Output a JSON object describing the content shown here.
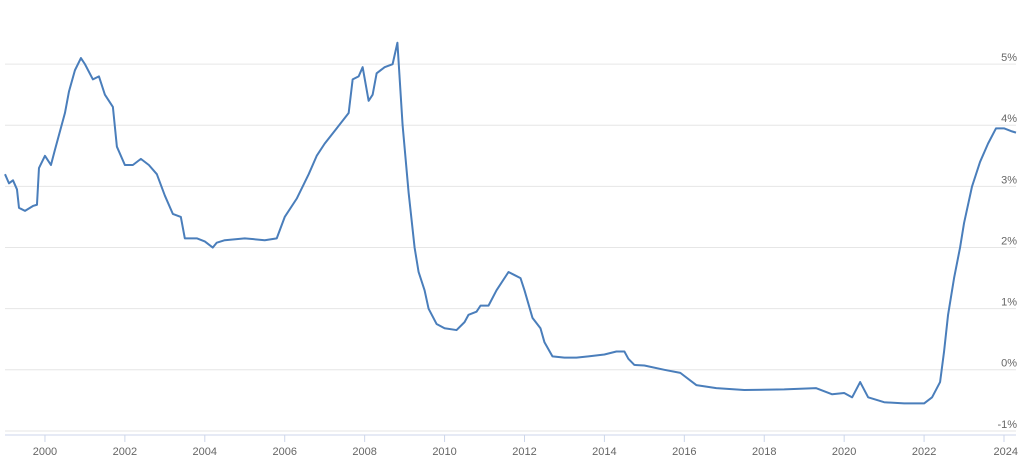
{
  "chart_data": {
    "type": "line",
    "x": [
      1999.0,
      1999.1,
      1999.2,
      1999.3,
      1999.35,
      1999.5,
      1999.7,
      1999.8,
      1999.85,
      2000.0,
      2000.15,
      2000.25,
      2000.5,
      2000.6,
      2000.75,
      2000.9,
      2001.0,
      2001.2,
      2001.35,
      2001.5,
      2001.7,
      2001.8,
      2002.0,
      2002.2,
      2002.4,
      2002.6,
      2002.8,
      2003.0,
      2003.2,
      2003.4,
      2003.5,
      2003.8,
      2004.0,
      2004.2,
      2004.3,
      2004.5,
      2005.0,
      2005.5,
      2005.8,
      2006.0,
      2006.3,
      2006.6,
      2006.8,
      2007.0,
      2007.3,
      2007.6,
      2007.7,
      2007.85,
      2007.95,
      2008.1,
      2008.2,
      2008.3,
      2008.5,
      2008.7,
      2008.82,
      2008.95,
      2009.1,
      2009.25,
      2009.35,
      2009.5,
      2009.6,
      2009.8,
      2010.0,
      2010.3,
      2010.5,
      2010.6,
      2010.8,
      2010.9,
      2011.1,
      2011.3,
      2011.6,
      2011.75,
      2011.9,
      2012.0,
      2012.2,
      2012.4,
      2012.5,
      2012.7,
      2013.0,
      2013.3,
      2013.6,
      2014.0,
      2014.3,
      2014.5,
      2014.6,
      2014.75,
      2015.0,
      2015.5,
      2015.9,
      2016.3,
      2016.8,
      2017.5,
      2018.5,
      2019.3,
      2019.7,
      2020.0,
      2020.2,
      2020.4,
      2020.6,
      2021.0,
      2021.5,
      2022.0,
      2022.2,
      2022.4,
      2022.5,
      2022.6,
      2022.75,
      2022.9,
      2023.0,
      2023.2,
      2023.4,
      2023.6,
      2023.8,
      2024.0,
      2024.2,
      2024.3
    ],
    "values": [
      3.2,
      3.05,
      3.1,
      2.95,
      2.65,
      2.6,
      2.68,
      2.7,
      3.3,
      3.5,
      3.35,
      3.6,
      4.2,
      4.55,
      4.9,
      5.1,
      5.0,
      4.75,
      4.8,
      4.5,
      4.3,
      3.65,
      3.35,
      3.35,
      3.45,
      3.35,
      3.2,
      2.85,
      2.55,
      2.5,
      2.15,
      2.15,
      2.1,
      2.0,
      2.08,
      2.12,
      2.15,
      2.12,
      2.15,
      2.5,
      2.8,
      3.2,
      3.5,
      3.7,
      3.95,
      4.2,
      4.75,
      4.8,
      4.95,
      4.4,
      4.5,
      4.85,
      4.95,
      5.0,
      5.35,
      4.0,
      2.9,
      2.0,
      1.6,
      1.3,
      1.0,
      0.75,
      0.68,
      0.65,
      0.78,
      0.9,
      0.95,
      1.05,
      1.05,
      1.3,
      1.6,
      1.55,
      1.5,
      1.3,
      0.85,
      0.68,
      0.45,
      0.22,
      0.2,
      0.2,
      0.22,
      0.25,
      0.3,
      0.3,
      0.18,
      0.08,
      0.07,
      0.0,
      -0.05,
      -0.25,
      -0.3,
      -0.33,
      -0.32,
      -0.3,
      -0.4,
      -0.38,
      -0.45,
      -0.2,
      -0.45,
      -0.53,
      -0.55,
      -0.55,
      -0.45,
      -0.2,
      0.3,
      0.9,
      1.5,
      2.0,
      2.4,
      3.0,
      3.4,
      3.7,
      3.95,
      3.95,
      3.9,
      3.88
    ],
    "color": "#4a7ebb",
    "xlim": [
      1999.0,
      2024.3
    ],
    "xticks": [
      2000,
      2002,
      2004,
      2006,
      2008,
      2010,
      2012,
      2014,
      2016,
      2018,
      2020,
      2022,
      2024
    ],
    "ylim": [
      -1.05,
      6.0
    ],
    "yticks": [
      {
        "value": -1,
        "label": "-1%"
      },
      {
        "value": 0,
        "label": "0%"
      },
      {
        "value": 1,
        "label": "1%"
      },
      {
        "value": 2,
        "label": "2%"
      },
      {
        "value": 3,
        "label": "3%"
      },
      {
        "value": 4,
        "label": "4%"
      },
      {
        "value": 5,
        "label": "5%"
      }
    ],
    "grid": true
  }
}
